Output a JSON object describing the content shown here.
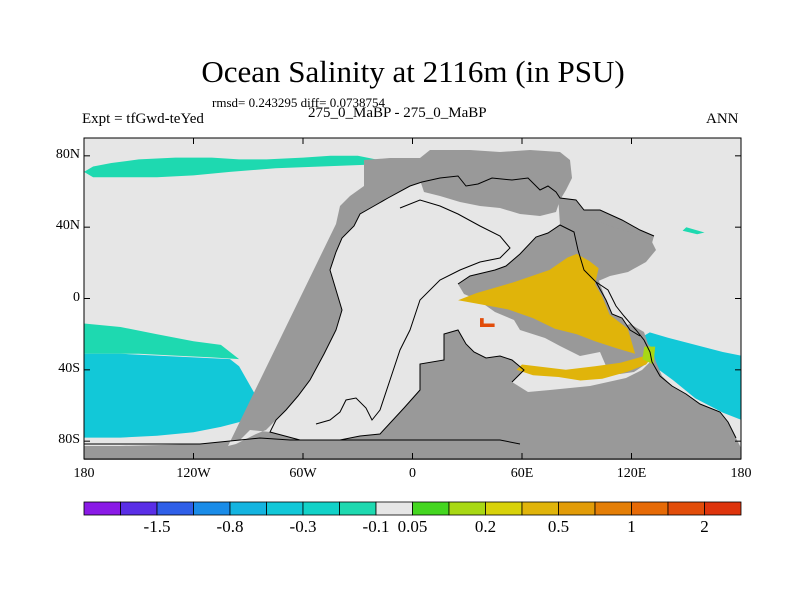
{
  "title": "Ocean Salinity at 2116m (in PSU)",
  "stats_line": "rmsd= 0.243295 diff= 0.0738754",
  "left_label": "Expt = tfGwd-teYed",
  "center_label": "275_0_MaBP - 275_0_MaBP",
  "right_label": "ANN",
  "colors": {
    "land": "#999999",
    "no_change": "#e6e6e6",
    "coastline": "#000000"
  },
  "chart_data": {
    "type": "heatmap",
    "title": "Ocean Salinity at 2116m (in PSU)",
    "variable": "salinity difference",
    "units": "PSU",
    "x_range": [
      -180,
      180
    ],
    "y_range": [
      -90,
      90
    ],
    "x_ticks": [
      {
        "value": -180,
        "label": "180"
      },
      {
        "value": -120,
        "label": "120W"
      },
      {
        "value": -60,
        "label": "60W"
      },
      {
        "value": 0,
        "label": "0"
      },
      {
        "value": 60,
        "label": "60E"
      },
      {
        "value": 120,
        "label": "120E"
      },
      {
        "value": 180,
        "label": "180"
      }
    ],
    "y_ticks": [
      {
        "value": 80,
        "label": "80N"
      },
      {
        "value": 40,
        "label": "40N"
      },
      {
        "value": 0,
        "label": "0"
      },
      {
        "value": -40,
        "label": "40S"
      },
      {
        "value": -80,
        "label": "80S"
      }
    ],
    "colorbar": {
      "colors": [
        "#8a1ae6",
        "#5a2ee6",
        "#2f5fe8",
        "#1a8ce8",
        "#14b4e0",
        "#12c8d8",
        "#12d2c8",
        "#1ed9b0",
        "#e6e6e6",
        "#44d620",
        "#a8d814",
        "#d8d20a",
        "#e0b40a",
        "#e29c08",
        "#e47e06",
        "#e66a06",
        "#e24d0a",
        "#de340c"
      ],
      "labels": [
        "-1.5",
        "-0.8",
        "-0.3",
        "-0.1",
        "0.05",
        "0.2",
        "0.5",
        "1",
        "2"
      ],
      "label_after_box": [
        1,
        3,
        5,
        7,
        8,
        10,
        12,
        14,
        16
      ]
    },
    "regions": [
      {
        "name": "north-polar-band",
        "value_class": "-0.1 to 0.05",
        "color": "#1ed9b0",
        "points": [
          [
            -180,
            71
          ],
          [
            -175,
            74
          ],
          [
            -165,
            76
          ],
          [
            -150,
            78
          ],
          [
            -130,
            79
          ],
          [
            -110,
            79
          ],
          [
            -95,
            78
          ],
          [
            -80,
            78
          ],
          [
            -60,
            79
          ],
          [
            -45,
            80
          ],
          [
            -30,
            80
          ],
          [
            -15,
            77
          ],
          [
            -25,
            75
          ],
          [
            -50,
            74
          ],
          [
            -75,
            73
          ],
          [
            -100,
            71
          ],
          [
            -120,
            69
          ],
          [
            -140,
            68
          ],
          [
            -160,
            68
          ],
          [
            -175,
            68
          ]
        ]
      },
      {
        "name": "north-pacific-patch",
        "value_class": "-0.1 to 0.05",
        "color": "#1ed9b0",
        "points": [
          [
            150,
            40
          ],
          [
            160,
            37
          ],
          [
            156,
            36
          ],
          [
            148,
            38
          ]
        ]
      },
      {
        "name": "south-pacific-band",
        "value_class": "-0.1 to 0.05",
        "color": "#1ed9b0",
        "points": [
          [
            -180,
            -14
          ],
          [
            -160,
            -16
          ],
          [
            -140,
            -20
          ],
          [
            -120,
            -24
          ],
          [
            -105,
            -26
          ],
          [
            -95,
            -34
          ],
          [
            -110,
            -33
          ],
          [
            -130,
            -32
          ],
          [
            -150,
            -31
          ],
          [
            -170,
            -31
          ],
          [
            -180,
            -31
          ]
        ]
      },
      {
        "name": "southern-ocean",
        "value_class": "-0.3 to -0.1",
        "color": "#12c8d8",
        "points": [
          [
            -180,
            -31
          ],
          [
            -160,
            -31
          ],
          [
            -140,
            -32
          ],
          [
            -120,
            -33
          ],
          [
            -100,
            -34
          ],
          [
            -95,
            -38
          ],
          [
            -85,
            -56
          ],
          [
            -80,
            -62
          ],
          [
            -90,
            -68
          ],
          [
            -105,
            -72
          ],
          [
            -120,
            -75
          ],
          [
            -140,
            -77
          ],
          [
            -160,
            -78
          ],
          [
            -180,
            -78
          ]
        ]
      },
      {
        "name": "southeast-pacific",
        "value_class": "-0.3 to -0.1",
        "color": "#12c8d8",
        "points": [
          [
            130,
            -19
          ],
          [
            140,
            -22
          ],
          [
            155,
            -26
          ],
          [
            170,
            -30
          ],
          [
            180,
            -32
          ],
          [
            180,
            -68
          ],
          [
            170,
            -64
          ],
          [
            155,
            -56
          ],
          [
            143,
            -46
          ],
          [
            135,
            -40
          ],
          [
            131,
            -35
          ],
          [
            127,
            -28
          ],
          [
            125,
            -22
          ]
        ]
      },
      {
        "name": "tethys-positive-zone",
        "value_class": "0.5 to 1",
        "color": "#e0b40a",
        "points": [
          [
            25,
            -1
          ],
          [
            35,
            3
          ],
          [
            55,
            9
          ],
          [
            75,
            16
          ],
          [
            85,
            23
          ],
          [
            90,
            25
          ],
          [
            97,
            21
          ],
          [
            102,
            17
          ],
          [
            100,
            8
          ],
          [
            104,
            1
          ],
          [
            108,
            -9
          ],
          [
            118,
            -17
          ],
          [
            122,
            -31
          ],
          [
            112,
            -28
          ],
          [
            100,
            -24
          ],
          [
            90,
            -20
          ],
          [
            78,
            -17
          ],
          [
            66,
            -11
          ],
          [
            52,
            -6
          ],
          [
            36,
            -3
          ]
        ]
      },
      {
        "name": "southern-positive-band",
        "value_class": "0.5 to 1",
        "color": "#e0b40a",
        "points": [
          [
            57,
            -40
          ],
          [
            66,
            -43
          ],
          [
            80,
            -44
          ],
          [
            92,
            -46
          ],
          [
            104,
            -45
          ],
          [
            118,
            -41
          ],
          [
            128,
            -37
          ],
          [
            131,
            -33
          ],
          [
            128,
            -32
          ],
          [
            114,
            -36
          ],
          [
            100,
            -38
          ],
          [
            84,
            -40
          ],
          [
            68,
            -38
          ],
          [
            60,
            -37
          ]
        ]
      },
      {
        "name": "high-value-cell",
        "value_class": "1 to 2",
        "color": "#e24d0a",
        "points": [
          [
            37,
            -11
          ],
          [
            39,
            -11
          ],
          [
            39,
            -14
          ],
          [
            45,
            -14
          ],
          [
            45,
            -16
          ],
          [
            37,
            -16
          ]
        ]
      },
      {
        "name": "coastal-small-patch",
        "value_class": "0.05 to 0.2",
        "color": "#a8d814",
        "points": [
          [
            127,
            -27
          ],
          [
            133,
            -27
          ],
          [
            132,
            -37
          ],
          [
            126,
            -34
          ]
        ]
      }
    ]
  }
}
